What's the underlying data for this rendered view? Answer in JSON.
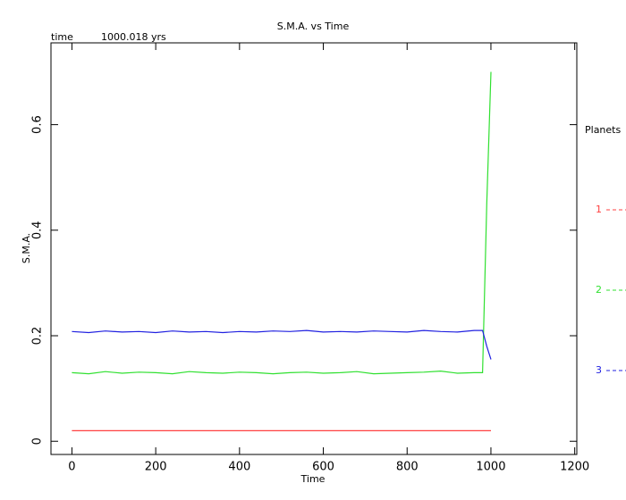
{
  "chart_data": {
    "type": "line",
    "title": "S.M.A. vs Time",
    "time_label": "time",
    "time_value": "1000.018 yrs",
    "x_label": "Time",
    "y_label": "S.M.A.",
    "legend_title": "Planets",
    "xlim": [
      -50,
      1205
    ],
    "ylim": [
      -0.025,
      0.755
    ],
    "xticks": [
      0,
      200,
      400,
      600,
      800,
      1000,
      1200
    ],
    "yticks": [
      0,
      0.2,
      0.4,
      0.6
    ],
    "x": [
      0,
      40,
      80,
      120,
      160,
      200,
      240,
      280,
      320,
      360,
      400,
      440,
      480,
      520,
      560,
      600,
      640,
      680,
      720,
      760,
      800,
      840,
      880,
      920,
      960,
      980,
      990,
      1000
    ],
    "series": [
      {
        "name": "1",
        "color": "#ff4040",
        "values": [
          0.02,
          0.02,
          0.02,
          0.02,
          0.02,
          0.02,
          0.02,
          0.02,
          0.02,
          0.02,
          0.02,
          0.02,
          0.02,
          0.02,
          0.02,
          0.02,
          0.02,
          0.02,
          0.02,
          0.02,
          0.02,
          0.02,
          0.02,
          0.02,
          0.02,
          0.02,
          0.02,
          0.02
        ]
      },
      {
        "name": "2",
        "color": "#30e030",
        "values": [
          0.13,
          0.128,
          0.132,
          0.129,
          0.131,
          0.13,
          0.128,
          0.132,
          0.13,
          0.129,
          0.131,
          0.13,
          0.128,
          0.13,
          0.131,
          0.129,
          0.13,
          0.132,
          0.128,
          0.129,
          0.13,
          0.131,
          0.133,
          0.129,
          0.13,
          0.13,
          0.45,
          0.7
        ]
      },
      {
        "name": "3",
        "color": "#2020e0",
        "values": [
          0.208,
          0.206,
          0.209,
          0.207,
          0.208,
          0.206,
          0.209,
          0.207,
          0.208,
          0.206,
          0.208,
          0.207,
          0.209,
          0.208,
          0.21,
          0.207,
          0.208,
          0.207,
          0.209,
          0.208,
          0.207,
          0.21,
          0.208,
          0.207,
          0.21,
          0.21,
          0.18,
          0.155
        ]
      }
    ]
  }
}
